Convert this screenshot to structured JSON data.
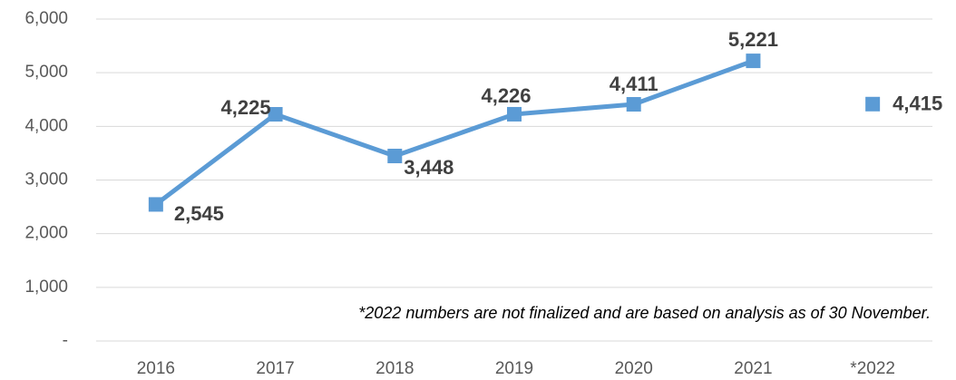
{
  "chart_data": {
    "type": "line",
    "categories": [
      "2016",
      "2017",
      "2018",
      "2019",
      "2020",
      "2021",
      "*2022"
    ],
    "series": [
      {
        "color": "#5b9bd5",
        "values": [
          2545,
          4225,
          3448,
          4226,
          4411,
          5221,
          null
        ],
        "value_labels": [
          "2,545",
          "4,225",
          "3,448",
          "4,226",
          "4,411",
          "5,221",
          null
        ]
      },
      {
        "color": "#5b9bd5",
        "values": [
          null,
          null,
          null,
          null,
          null,
          null,
          4415
        ],
        "value_labels": [
          null,
          null,
          null,
          null,
          null,
          null,
          "4,415"
        ]
      }
    ],
    "ylim": [
      0,
      6000
    ],
    "yticks": [
      {
        "value": 0,
        "label": "-"
      },
      {
        "value": 1000,
        "label": "1,000"
      },
      {
        "value": 2000,
        "label": "2,000"
      },
      {
        "value": 3000,
        "label": "3,000"
      },
      {
        "value": 4000,
        "label": "4,000"
      },
      {
        "value": 5000,
        "label": "5,000"
      },
      {
        "value": 6000,
        "label": "6,000"
      }
    ],
    "grid": true,
    "annotation": "*2022 numbers are not finalized and are based on analysis as of 30 November."
  }
}
